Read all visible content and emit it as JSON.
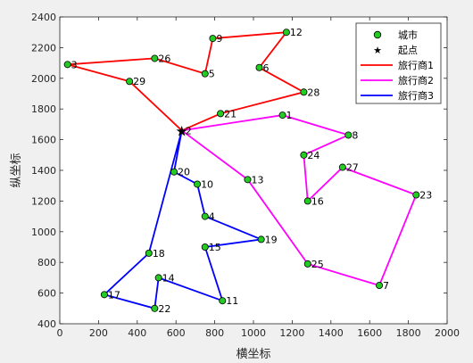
{
  "chart_data": {
    "type": "line",
    "xlabel": "横坐标",
    "ylabel": "纵坐标",
    "xlim": [
      0,
      2000
    ],
    "ylim": [
      400,
      2400
    ],
    "xticks": [
      0,
      200,
      400,
      600,
      800,
      1000,
      1200,
      1400,
      1600,
      1800,
      2000
    ],
    "yticks": [
      400,
      600,
      800,
      1000,
      1200,
      1400,
      1600,
      1800,
      2000,
      2200,
      2400
    ],
    "grid": false,
    "legend_position": "top-right",
    "legend": {
      "cities": "城市",
      "start": "起点",
      "route1": "旅行商1",
      "route2": "旅行商2",
      "route3": "旅行商3"
    },
    "start": {
      "label": "2",
      "x": 630,
      "y": 1660
    },
    "cities": [
      {
        "label": "1",
        "x": 1150,
        "y": 1760
      },
      {
        "label": "3",
        "x": 40,
        "y": 2090
      },
      {
        "label": "4",
        "x": 750,
        "y": 1100
      },
      {
        "label": "5",
        "x": 750,
        "y": 2030
      },
      {
        "label": "6",
        "x": 1030,
        "y": 2070
      },
      {
        "label": "7",
        "x": 1650,
        "y": 650
      },
      {
        "label": "8",
        "x": 1490,
        "y": 1630
      },
      {
        "label": "9",
        "x": 790,
        "y": 2260
      },
      {
        "label": "10",
        "x": 710,
        "y": 1310
      },
      {
        "label": "11",
        "x": 840,
        "y": 550
      },
      {
        "label": "12",
        "x": 1170,
        "y": 2300
      },
      {
        "label": "13",
        "x": 970,
        "y": 1340
      },
      {
        "label": "14",
        "x": 510,
        "y": 700
      },
      {
        "label": "15",
        "x": 750,
        "y": 900
      },
      {
        "label": "16",
        "x": 1280,
        "y": 1200
      },
      {
        "label": "17",
        "x": 230,
        "y": 590
      },
      {
        "label": "18",
        "x": 460,
        "y": 860
      },
      {
        "label": "19",
        "x": 1040,
        "y": 950
      },
      {
        "label": "20",
        "x": 590,
        "y": 1390
      },
      {
        "label": "21",
        "x": 830,
        "y": 1770
      },
      {
        "label": "22",
        "x": 490,
        "y": 500
      },
      {
        "label": "23",
        "x": 1840,
        "y": 1240
      },
      {
        "label": "24",
        "x": 1260,
        "y": 1500
      },
      {
        "label": "25",
        "x": 1280,
        "y": 790
      },
      {
        "label": "26",
        "x": 490,
        "y": 2130
      },
      {
        "label": "27",
        "x": 1460,
        "y": 1420
      },
      {
        "label": "28",
        "x": 1260,
        "y": 1910
      },
      {
        "label": "29",
        "x": 360,
        "y": 1980
      }
    ],
    "series": [
      {
        "name": "旅行商1",
        "color": "#ff0000",
        "route": [
          "2",
          "21",
          "28",
          "6",
          "12",
          "9",
          "5",
          "26",
          "3",
          "29",
          "2"
        ]
      },
      {
        "name": "旅行商2",
        "color": "#ff00ff",
        "route": [
          "2",
          "1",
          "8",
          "24",
          "16",
          "27",
          "23",
          "7",
          "25",
          "13",
          "2"
        ]
      },
      {
        "name": "旅行商3",
        "color": "#0000ff",
        "route": [
          "2",
          "20",
          "10",
          "4",
          "19",
          "15",
          "11",
          "14",
          "22",
          "17",
          "18",
          "2"
        ]
      }
    ],
    "marker_color": "#22cc22"
  }
}
